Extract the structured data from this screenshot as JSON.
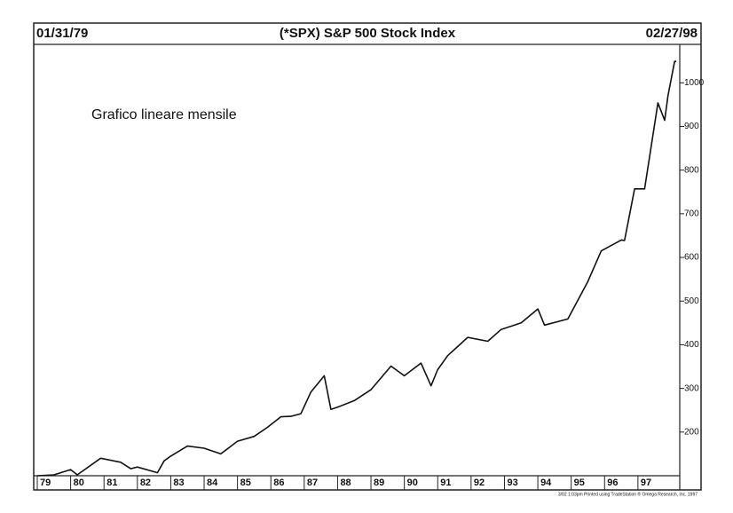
{
  "chart_data": {
    "type": "line",
    "title": "(*SPX) S&P 500 Stock Index",
    "start_date": "01/31/79",
    "end_date": "02/27/98",
    "annotation": "Grafico lineare mensile",
    "footer": "3/02 1:03pm Printed using TradeStation ® Omega Research, Inc. 1997",
    "color": "#111111",
    "x": [
      1979.0,
      1979.5,
      1980.0,
      1980.2,
      1980.9,
      1981.5,
      1981.8,
      1982.0,
      1982.6,
      1982.8,
      1983.0,
      1983.5,
      1984.0,
      1984.5,
      1985.0,
      1985.5,
      1985.9,
      1986.3,
      1986.6,
      1986.9,
      1987.2,
      1987.6,
      1987.8,
      1988.0,
      1988.5,
      1989.0,
      1989.6,
      1990.0,
      1990.5,
      1990.8,
      1991.0,
      1991.3,
      1991.9,
      1992.5,
      1992.9,
      1993.5,
      1994.0,
      1994.2,
      1994.9,
      1995.5,
      1995.9,
      1996.5,
      1996.6,
      1996.9,
      1997.2,
      1997.6,
      1997.8,
      1997.9,
      1998.1,
      1998.15
    ],
    "values": [
      100,
      102,
      114,
      102,
      140,
      131,
      116,
      120,
      107,
      134,
      145,
      168,
      163,
      150,
      179,
      190,
      211,
      235,
      236,
      242,
      292,
      329,
      252,
      257,
      272,
      297,
      351,
      329,
      358,
      306,
      343,
      375,
      417,
      408,
      435,
      450,
      482,
      445,
      459,
      545,
      615,
      640,
      639,
      757,
      757,
      954,
      914,
      970,
      1049,
      1049
    ],
    "xlim": [
      1979.0,
      1998.2
    ],
    "xticks": [
      {
        "value": 1979,
        "label": "79"
      },
      {
        "value": 1980,
        "label": "80"
      },
      {
        "value": 1981,
        "label": "81"
      },
      {
        "value": 1982,
        "label": "82"
      },
      {
        "value": 1983,
        "label": "83"
      },
      {
        "value": 1984,
        "label": "84"
      },
      {
        "value": 1985,
        "label": "85"
      },
      {
        "value": 1986,
        "label": "86"
      },
      {
        "value": 1987,
        "label": "87"
      },
      {
        "value": 1988,
        "label": "88"
      },
      {
        "value": 1989,
        "label": "89"
      },
      {
        "value": 1990,
        "label": "90"
      },
      {
        "value": 1991,
        "label": "91"
      },
      {
        "value": 1992,
        "label": "92"
      },
      {
        "value": 1993,
        "label": "93"
      },
      {
        "value": 1994,
        "label": "94"
      },
      {
        "value": 1995,
        "label": "95"
      },
      {
        "value": 1996,
        "label": "96"
      },
      {
        "value": 1997,
        "label": "97"
      }
    ],
    "ylim": [
      100,
      1088
    ],
    "yticks": [
      200,
      300,
      400,
      500,
      600,
      700,
      800,
      900,
      1000
    ]
  }
}
